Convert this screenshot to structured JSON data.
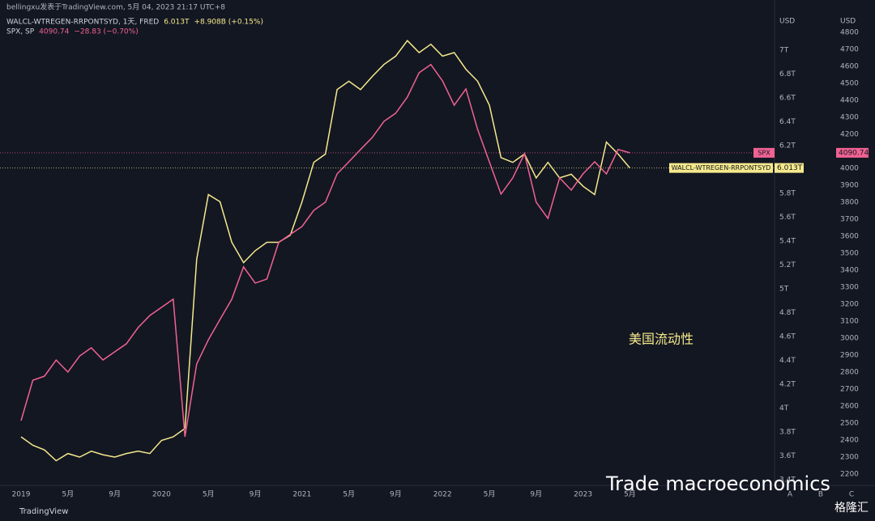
{
  "chart_data": {
    "type": "line",
    "subtitle": "bellingxu发表于TradingView.com, 5月 04, 2023 21:17 UTC+8",
    "annotation": "美国流动性",
    "watermark": "Trade macroeconomics",
    "source_badge": "格隆汇",
    "brand": "TradingView",
    "y_unit": "USD",
    "y2_unit": "USD",
    "corner_buttons": [
      "A",
      "B",
      "C"
    ],
    "x": [
      "2019-01",
      "2019-02",
      "2019-03",
      "2019-04",
      "2019-05",
      "2019-06",
      "2019-07",
      "2019-08",
      "2019-09",
      "2019-10",
      "2019-11",
      "2019-12",
      "2020-01",
      "2020-02",
      "2020-03",
      "2020-04",
      "2020-05",
      "2020-06",
      "2020-07",
      "2020-08",
      "2020-09",
      "2020-10",
      "2020-11",
      "2020-12",
      "2021-01",
      "2021-02",
      "2021-03",
      "2021-04",
      "2021-05",
      "2021-06",
      "2021-07",
      "2021-08",
      "2021-09",
      "2021-10",
      "2021-11",
      "2021-12",
      "2022-01",
      "2022-02",
      "2022-03",
      "2022-04",
      "2022-05",
      "2022-06",
      "2022-07",
      "2022-08",
      "2022-09",
      "2022-10",
      "2022-11",
      "2022-12",
      "2023-01",
      "2023-02",
      "2023-03",
      "2023-04",
      "2023-05"
    ],
    "series": [
      {
        "name": "WALCL-WTREGEN-RRPONTSYD",
        "legend_title": "WALCL-WTREGEN-RRPONTSYD, 1天, FRED",
        "color": "#f5e98c",
        "axis": "y",
        "last_value": 6.013,
        "last_value_label": "6.013T",
        "change_label": "+8.908B (+0.15%)",
        "values": [
          3.76,
          3.69,
          3.65,
          3.56,
          3.62,
          3.59,
          3.64,
          3.61,
          3.59,
          3.62,
          3.64,
          3.62,
          3.73,
          3.76,
          3.83,
          5.25,
          5.79,
          5.73,
          5.39,
          5.22,
          5.32,
          5.39,
          5.39,
          5.45,
          5.73,
          6.06,
          6.13,
          6.67,
          6.74,
          6.67,
          6.78,
          6.88,
          6.95,
          7.08,
          6.98,
          7.05,
          6.95,
          6.98,
          6.84,
          6.74,
          6.54,
          6.1,
          6.06,
          6.13,
          5.93,
          6.06,
          5.93,
          5.96,
          5.86,
          5.79,
          6.23,
          6.13,
          6.013
        ]
      },
      {
        "name": "SPX",
        "legend_title": "SPX, SP",
        "color": "#f06292",
        "axis": "y2",
        "last_value": 4090.74,
        "change_label": "−28.83 (−0.70%)",
        "values": [
          2514,
          2752,
          2776,
          2871,
          2800,
          2895,
          2943,
          2871,
          2919,
          2967,
          3062,
          3133,
          3181,
          3229,
          2419,
          2848,
          2990,
          3110,
          3229,
          3419,
          3324,
          3348,
          3562,
          3610,
          3657,
          3752,
          3800,
          3967,
          4038,
          4110,
          4181,
          4276,
          4324,
          4419,
          4562,
          4610,
          4514,
          4371,
          4467,
          4229,
          4038,
          3848,
          3943,
          4086,
          3800,
          3705,
          3943,
          3871,
          3967,
          4038,
          3967,
          4110,
          4090.74
        ]
      }
    ],
    "ylim": [
      3.353,
      7.285
    ],
    "yticks": [
      {
        "value": 3.4,
        "label": "3.4T"
      },
      {
        "value": 3.6,
        "label": "3.6T"
      },
      {
        "value": 3.8,
        "label": "3.8T"
      },
      {
        "value": 4,
        "label": "4T"
      },
      {
        "value": 4.2,
        "label": "4.2T"
      },
      {
        "value": 4.4,
        "label": "4.4T"
      },
      {
        "value": 4.6,
        "label": "4.6T"
      },
      {
        "value": 4.8,
        "label": "4.8T"
      },
      {
        "value": 5,
        "label": "5T"
      },
      {
        "value": 5.2,
        "label": "5.2T"
      },
      {
        "value": 5.4,
        "label": "5.4T"
      },
      {
        "value": 5.6,
        "label": "5.6T"
      },
      {
        "value": 5.8,
        "label": "5.8T"
      },
      {
        "value": 6.2,
        "label": "6.2T"
      },
      {
        "value": 6.4,
        "label": "6.4T"
      },
      {
        "value": 6.6,
        "label": "6.6T"
      },
      {
        "value": 6.8,
        "label": "6.8T"
      },
      {
        "value": 7,
        "label": "7T"
      }
    ],
    "y2lim": [
      2133,
      4895
    ],
    "y2ticks": [
      2200,
      2300,
      2400,
      2500,
      2600,
      2700,
      2800,
      2900,
      3000,
      3100,
      3200,
      3300,
      3400,
      3500,
      3600,
      3700,
      3800,
      3900,
      4000,
      4100,
      4200,
      4300,
      4400,
      4500,
      4600,
      4700,
      4800
    ],
    "xticks": [
      {
        "value": "2019-01",
        "label": "2019"
      },
      {
        "value": "2019-05",
        "label": "5月"
      },
      {
        "value": "2019-09",
        "label": "9月"
      },
      {
        "value": "2020-01",
        "label": "2020"
      },
      {
        "value": "2020-05",
        "label": "5月"
      },
      {
        "value": "2020-09",
        "label": "9月"
      },
      {
        "value": "2021-01",
        "label": "2021"
      },
      {
        "value": "2021-05",
        "label": "5月"
      },
      {
        "value": "2021-09",
        "label": "9月"
      },
      {
        "value": "2022-01",
        "label": "2022"
      },
      {
        "value": "2022-05",
        "label": "5月"
      },
      {
        "value": "2022-09",
        "label": "9月"
      },
      {
        "value": "2023-01",
        "label": "2023"
      },
      {
        "value": "2023-05",
        "label": "5月"
      }
    ],
    "grid": false
  }
}
